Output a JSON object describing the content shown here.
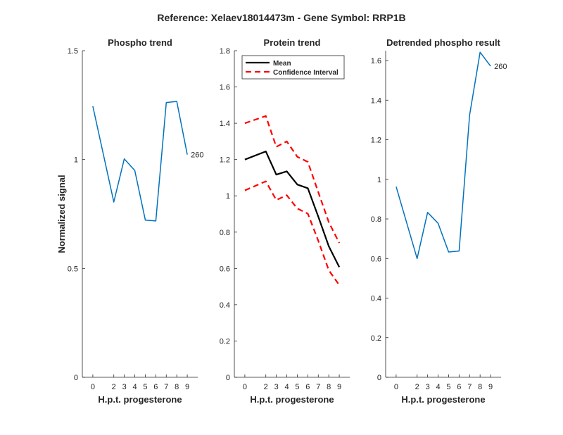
{
  "suptitle": "Reference:  Xelaev18014473m - Gene Symbol:  RRP1B",
  "chart_data": [
    {
      "type": "line",
      "title": "Phospho trend",
      "xlabel": "H.p.t. progesterone",
      "ylabel": "Normalized signal",
      "x": [
        0,
        2,
        3,
        4,
        5,
        6,
        7,
        8,
        9
      ],
      "xlim": [
        -1,
        10
      ],
      "ylim": [
        0,
        1.5
      ],
      "yticks": [
        0,
        0.5,
        1,
        1.5
      ],
      "ytick_labels": [
        "0",
        "0.5",
        "1",
        "1.5"
      ],
      "series": [
        {
          "name": "Phospho",
          "color": "#0072BD",
          "dash": "",
          "width": 1.5,
          "values": [
            1.245,
            0.805,
            1.003,
            0.95,
            0.722,
            0.718,
            1.262,
            1.267,
            1.023
          ]
        }
      ],
      "end_label": "260"
    },
    {
      "type": "line",
      "title": "Protein trend",
      "xlabel": "H.p.t. progesterone",
      "ylabel": "",
      "x": [
        0,
        2,
        3,
        4,
        5,
        6,
        7,
        8,
        9
      ],
      "xlim": [
        -1,
        10
      ],
      "ylim": [
        0,
        1.8
      ],
      "yticks": [
        0,
        0.2,
        0.4,
        0.6,
        0.8,
        1,
        1.2,
        1.4,
        1.6,
        1.8
      ],
      "ytick_labels": [
        "0",
        "0.2",
        "0.4",
        "0.6",
        "0.8",
        "1",
        "1.2",
        "1.4",
        "1.6",
        "1.8"
      ],
      "series": [
        {
          "name": "Mean",
          "color": "#000000",
          "dash": "",
          "width": 2.2,
          "values": [
            1.2,
            1.245,
            1.117,
            1.135,
            1.062,
            1.042,
            0.885,
            0.722,
            0.607
          ]
        },
        {
          "name": "Confidence Interval",
          "color": "#FF0000",
          "dash": "8,5",
          "width": 2.2,
          "values": [
            1.4,
            1.44,
            1.27,
            1.3,
            1.215,
            1.187,
            1.02,
            0.855,
            0.74
          ]
        },
        {
          "name": "Confidence Interval lower",
          "color": "#FF0000",
          "dash": "8,5",
          "width": 2.2,
          "values": [
            1.03,
            1.08,
            0.977,
            1.003,
            0.93,
            0.902,
            0.752,
            0.59,
            0.508
          ]
        }
      ],
      "legend": [
        {
          "label": "Mean",
          "color": "#000000",
          "dash": ""
        },
        {
          "label": "Confidence Interval",
          "color": "#FF0000",
          "dash": "8,5"
        }
      ]
    },
    {
      "type": "line",
      "title": "Detrended phospho result",
      "xlabel": "H.p.t. progesterone",
      "ylabel": "",
      "x": [
        0,
        2,
        3,
        4,
        5,
        6,
        7,
        8,
        9
      ],
      "xlim": [
        -1,
        10
      ],
      "ylim": [
        0,
        1.65
      ],
      "yticks": [
        0,
        0.2,
        0.4,
        0.6,
        0.8,
        1,
        1.2,
        1.4,
        1.6
      ],
      "ytick_labels": [
        "0",
        "0.2",
        "0.4",
        "0.6",
        "0.8",
        "1",
        "1.2",
        "1.4",
        "1.6"
      ],
      "series": [
        {
          "name": "Detrended",
          "color": "#0072BD",
          "dash": "",
          "width": 1.5,
          "values": [
            0.963,
            0.6,
            0.833,
            0.778,
            0.633,
            0.638,
            1.325,
            1.642,
            1.572
          ]
        }
      ],
      "end_label": "260"
    }
  ]
}
